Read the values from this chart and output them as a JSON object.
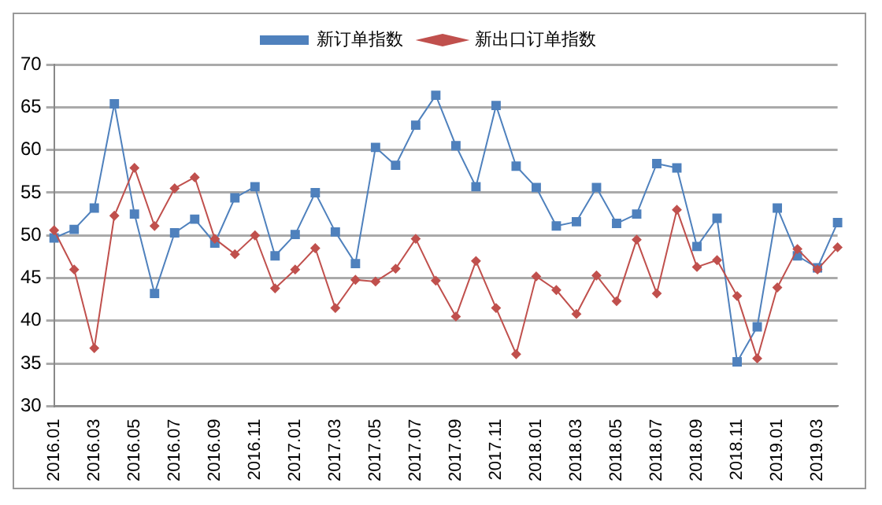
{
  "chart_data": {
    "type": "line",
    "categories": [
      "2016.01",
      null,
      "2016.03",
      null,
      "2016.05",
      null,
      "2016.07",
      null,
      "2016.09",
      null,
      "2016.11",
      null,
      "2017.01",
      null,
      "2017.03",
      null,
      "2017.05",
      null,
      "2017.07",
      null,
      "2017.09",
      null,
      "2017.11",
      null,
      "2018.01",
      null,
      "2018.03",
      null,
      "2018.05",
      null,
      "2018.07",
      null,
      "2018.09",
      null,
      "2018.11",
      null,
      "2019.01",
      null,
      "2019.03",
      null
    ],
    "series": [
      {
        "name": "新订单指数",
        "color": "#4f81bd",
        "marker": "square",
        "values": [
          49.7,
          50.7,
          53.2,
          65.4,
          52.5,
          43.2,
          50.3,
          51.9,
          49.1,
          54.4,
          55.7,
          47.6,
          50.1,
          55.0,
          50.4,
          46.7,
          60.3,
          58.2,
          62.9,
          66.4,
          60.5,
          55.7,
          65.2,
          58.1,
          55.6,
          51.1,
          51.6,
          55.6,
          51.4,
          52.5,
          58.4,
          57.9,
          48.7,
          52.0,
          35.2,
          39.3,
          53.2,
          47.6,
          46.2,
          51.5
        ]
      },
      {
        "name": "新出口订单指数",
        "color": "#c0504d",
        "marker": "diamond",
        "values": [
          50.6,
          46.0,
          36.8,
          52.3,
          57.9,
          51.1,
          55.5,
          56.8,
          49.6,
          47.8,
          50.0,
          43.8,
          46.0,
          48.5,
          41.5,
          44.8,
          44.6,
          46.1,
          49.6,
          44.7,
          40.5,
          47.0,
          41.5,
          36.1,
          45.2,
          43.6,
          40.8,
          45.3,
          42.3,
          49.5,
          43.2,
          53.0,
          46.3,
          47.1,
          42.9,
          35.6,
          43.9,
          48.4,
          46.0,
          48.6
        ]
      }
    ],
    "ylim": [
      30,
      70
    ],
    "yticks": [
      30,
      35,
      40,
      45,
      50,
      55,
      60,
      65,
      70
    ],
    "grid": "y",
    "legend": "top"
  }
}
